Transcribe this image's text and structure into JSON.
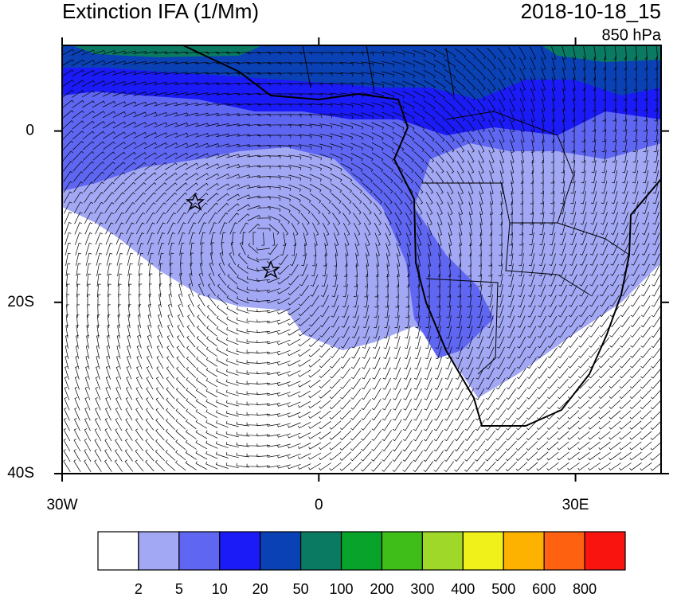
{
  "title": "Extinction IFA (1/Mm)",
  "valid_time": "2018-10-18_15",
  "level": "850 hPa",
  "map": {
    "xlim": [
      -30,
      40
    ],
    "ylim": [
      -40,
      10
    ],
    "xticks": [
      {
        "value": -30,
        "label": "30W"
      },
      0,
      {
        "value": 30,
        "label": "30E"
      }
    ],
    "yticks": [
      0,
      {
        "value": -20,
        "label": "20S"
      },
      {
        "value": -40,
        "label": "40S"
      }
    ]
  },
  "colorbar": {
    "levels": [
      2,
      5,
      10,
      20,
      50,
      100,
      200,
      300,
      400,
      500,
      600,
      800
    ],
    "colors": [
      "#ffffff",
      "#a3a8f5",
      "#5f66f2",
      "#1b1bf7",
      "#0a41b5",
      "#0a7a63",
      "#08a32a",
      "#3fbe1a",
      "#a0d82a",
      "#f0f01a",
      "#fdb200",
      "#fe6210",
      "#fa1410"
    ]
  }
}
